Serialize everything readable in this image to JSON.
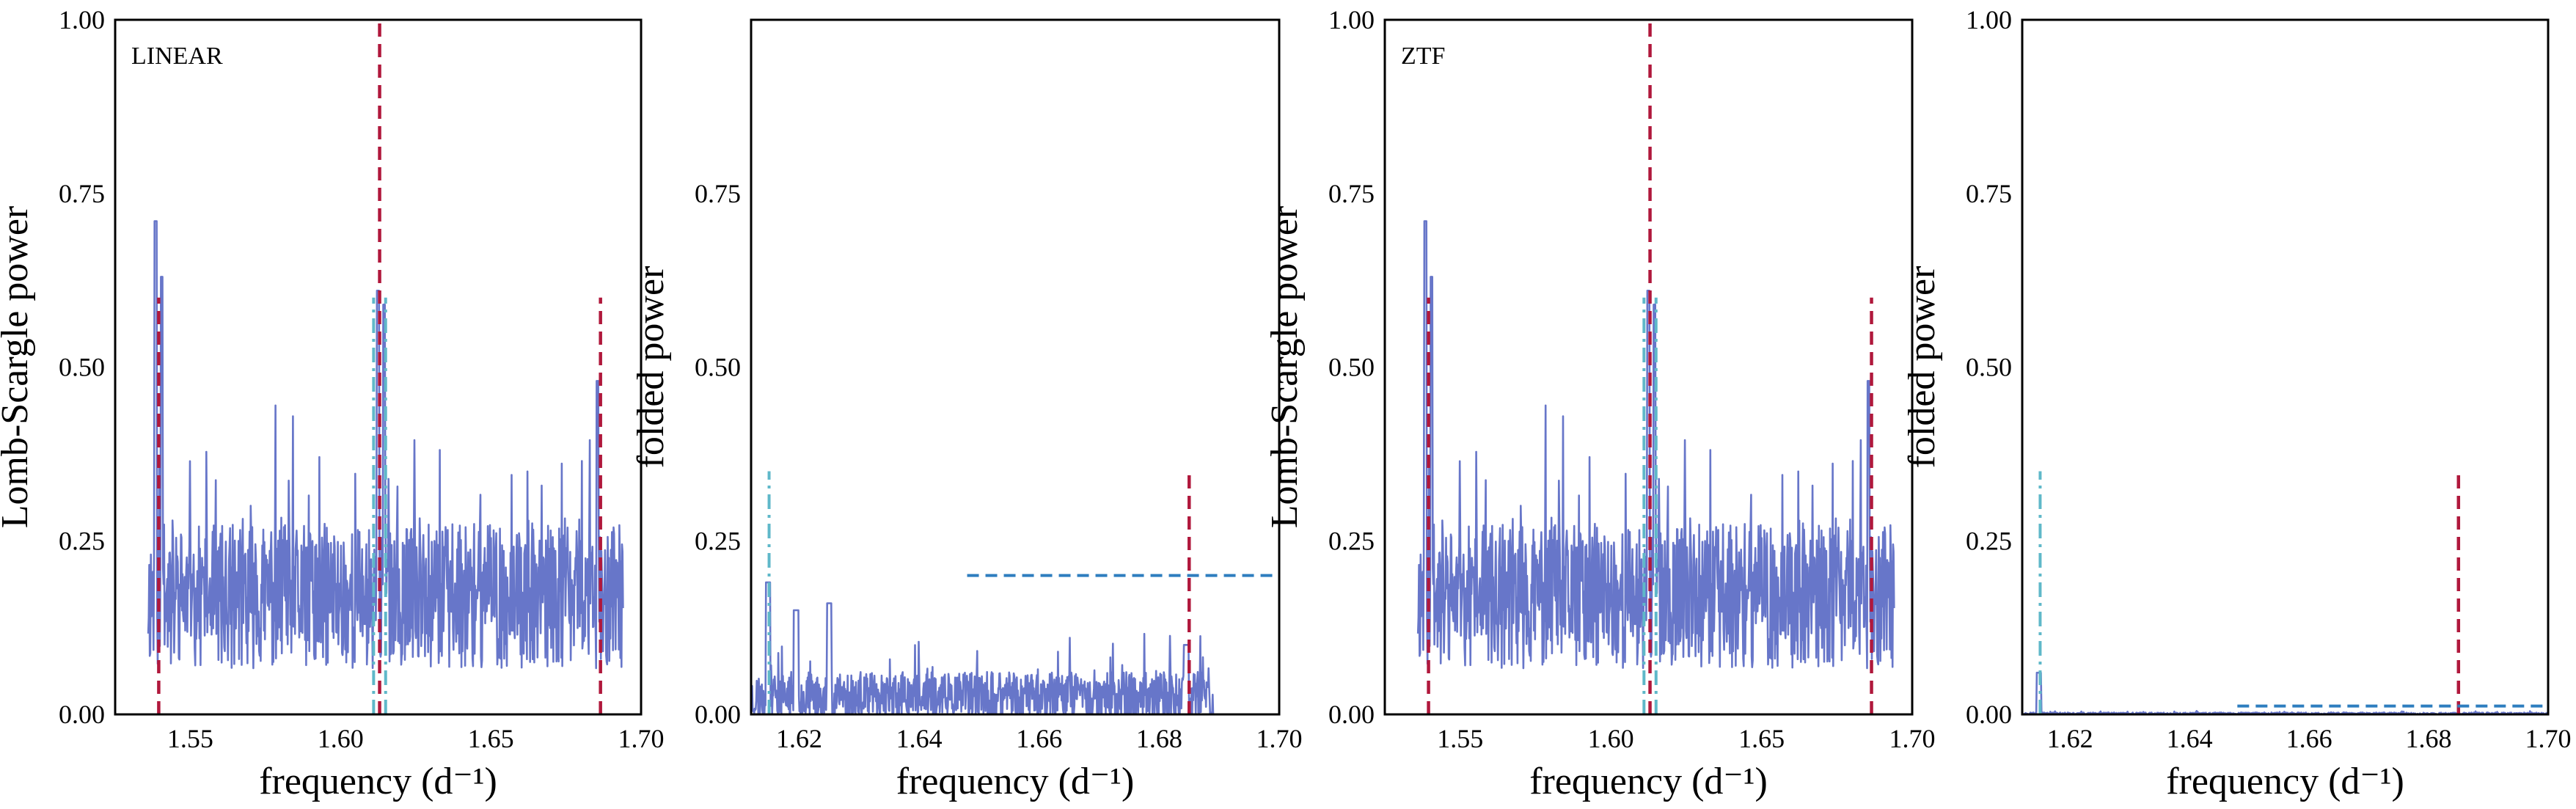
{
  "figure": {
    "colors": {
      "series": "#6776c9",
      "red_dashed": "#b0183c",
      "cyan_dashdot": "#5fb8c9",
      "blue_dashed": "#2e7ebf"
    }
  },
  "chart_data": [
    {
      "type": "line",
      "panel_label": "LINEAR",
      "xlabel": "frequency (d⁻¹)",
      "ylabel": "Lomb-Scargle power",
      "xlim": [
        1.525,
        1.7
      ],
      "ylim": [
        0,
        1.0
      ],
      "xticks": [
        "1.55",
        "1.60",
        "1.65",
        "1.70"
      ],
      "yticks": [
        "0.00",
        "0.25",
        "0.50",
        "0.75",
        "1.00"
      ],
      "grid": false,
      "series": [
        {
          "x_range": [
            1.536,
            1.694
          ],
          "baseline": 0.16,
          "noise": 0.13,
          "seed": 11,
          "peaks": [
            [
              1.5385,
              0.71
            ],
            [
              1.5405,
              0.63
            ],
            [
              1.6125,
              0.61
            ],
            [
              1.6145,
              0.59
            ],
            [
              1.6855,
              0.48
            ]
          ]
        }
      ],
      "vlines": [
        {
          "x": 1.5395,
          "ymax": 0.6,
          "style": "red_dashed"
        },
        {
          "x": 1.613,
          "ymax": 1.0,
          "style": "red_dashed"
        },
        {
          "x": 1.6865,
          "ymax": 0.6,
          "style": "red_dashed"
        },
        {
          "x": 1.611,
          "ymax": 0.6,
          "style": "cyan_dashdot"
        },
        {
          "x": 1.615,
          "ymax": 0.6,
          "style": "cyan_dashdot"
        }
      ],
      "hlines": []
    },
    {
      "type": "line",
      "panel_label": "",
      "xlabel": "frequency (d⁻¹)",
      "ylabel": "folded power",
      "xlim": [
        1.612,
        1.7
      ],
      "ylim": [
        0,
        1.0
      ],
      "xticks": [
        "1.62",
        "1.64",
        "1.66",
        "1.68",
        "1.70"
      ],
      "yticks": [
        "0.00",
        "0.25",
        "0.50",
        "0.75"
      ],
      "grid": false,
      "series": [
        {
          "x_range": [
            1.612,
            1.689
          ],
          "baseline": 0.022,
          "noise": 0.045,
          "seed": 23,
          "peaks": [
            [
              1.6148,
              0.19
            ],
            [
              1.6195,
              0.15
            ],
            [
              1.625,
              0.16
            ],
            [
              1.6845,
              0.1
            ]
          ]
        }
      ],
      "vlines": [
        {
          "x": 1.615,
          "ymax": 0.35,
          "style": "cyan_dashdot"
        },
        {
          "x": 1.685,
          "ymax": 0.35,
          "style": "red_dashed"
        }
      ],
      "hlines": [
        {
          "y": 0.2,
          "xmin": 1.648,
          "xmax": 1.7,
          "style": "blue_dashed"
        }
      ]
    },
    {
      "type": "line",
      "panel_label": "ZTF",
      "xlabel": "frequency (d⁻¹)",
      "ylabel": "Lomb-Scargle power",
      "xlim": [
        1.525,
        1.7
      ],
      "ylim": [
        0,
        1.0
      ],
      "xticks": [
        "1.55",
        "1.60",
        "1.65",
        "1.70"
      ],
      "yticks": [
        "0.00",
        "0.25",
        "0.50",
        "0.75",
        "1.00"
      ],
      "grid": false,
      "series": [
        {
          "x_range": [
            1.536,
            1.694
          ],
          "baseline": 0.16,
          "noise": 0.13,
          "seed": 11,
          "peaks": [
            [
              1.5385,
              0.71
            ],
            [
              1.5405,
              0.63
            ],
            [
              1.6125,
              0.61
            ],
            [
              1.6145,
              0.59
            ],
            [
              1.6855,
              0.48
            ]
          ]
        }
      ],
      "vlines": [
        {
          "x": 1.5395,
          "ymax": 0.6,
          "style": "red_dashed"
        },
        {
          "x": 1.613,
          "ymax": 1.0,
          "style": "red_dashed"
        },
        {
          "x": 1.6865,
          "ymax": 0.6,
          "style": "red_dashed"
        },
        {
          "x": 1.611,
          "ymax": 0.6,
          "style": "cyan_dashdot"
        },
        {
          "x": 1.615,
          "ymax": 0.6,
          "style": "cyan_dashdot"
        }
      ],
      "hlines": []
    },
    {
      "type": "line",
      "panel_label": "",
      "xlabel": "frequency (d⁻¹)",
      "ylabel": "folded power",
      "xlim": [
        1.612,
        1.7
      ],
      "ylim": [
        0,
        1.0
      ],
      "xticks": [
        "1.62",
        "1.64",
        "1.66",
        "1.68",
        "1.70"
      ],
      "yticks": [
        "0.00",
        "0.25",
        "0.50",
        "0.75",
        "1.00"
      ],
      "grid": false,
      "series": [
        {
          "x_range": [
            1.612,
            1.7
          ],
          "baseline": 0.001,
          "noise": 0.002,
          "seed": 37,
          "peaks": [
            [
              1.6148,
              0.06
            ]
          ]
        }
      ],
      "vlines": [
        {
          "x": 1.615,
          "ymax": 0.35,
          "style": "cyan_dashdot"
        },
        {
          "x": 1.685,
          "ymax": 0.35,
          "style": "red_dashed"
        }
      ],
      "hlines": [
        {
          "y": 0.012,
          "xmin": 1.648,
          "xmax": 1.7,
          "style": "blue_dashed"
        }
      ]
    }
  ]
}
